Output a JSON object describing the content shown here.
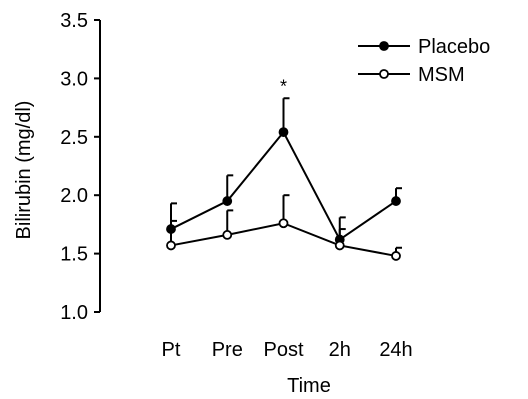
{
  "chart_data": {
    "type": "line",
    "title": "",
    "xlabel": "Time",
    "ylabel": "Bilirubin (mg/dl)",
    "categories": [
      "Pt",
      "Pre",
      "Post",
      "2h",
      "24h"
    ],
    "ylim": [
      1.0,
      3.5
    ],
    "yticks": [
      "1.0",
      "1.5",
      "2.0",
      "2.5",
      "3.0",
      "3.5"
    ],
    "grid": false,
    "legend_position": "top-right",
    "series": [
      {
        "name": "Placebo",
        "marker": "filled-circle",
        "color": "#000000",
        "values": [
          1.71,
          1.95,
          2.54,
          1.62,
          1.95
        ],
        "error": [
          0.22,
          0.22,
          0.29,
          0.19,
          0.11
        ]
      },
      {
        "name": "MSM",
        "marker": "open-circle",
        "color": "#000000",
        "values": [
          1.57,
          1.66,
          1.76,
          1.57,
          1.48
        ],
        "error": [
          0.21,
          0.21,
          0.24,
          0.14,
          0.07
        ]
      }
    ],
    "annotations": [
      {
        "text": "*",
        "category": "Post"
      }
    ]
  }
}
